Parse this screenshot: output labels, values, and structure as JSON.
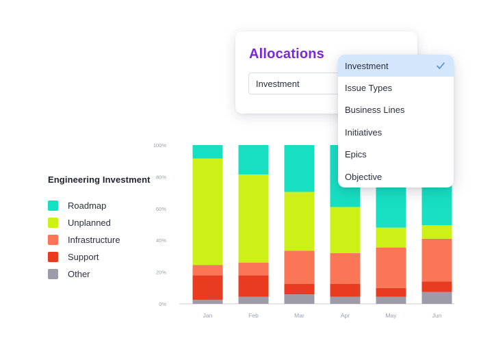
{
  "card": {
    "title": "Allocations",
    "select_value": "Investment"
  },
  "dropdown": {
    "options": [
      {
        "label": "Investment",
        "selected": true
      },
      {
        "label": "Issue Types",
        "selected": false
      },
      {
        "label": "Business Lines",
        "selected": false
      },
      {
        "label": "Initiatives",
        "selected": false
      },
      {
        "label": "Epics",
        "selected": false
      },
      {
        "label": "Objective",
        "selected": false
      }
    ],
    "selected_icon": "check-icon",
    "accent": "#d3e6fb"
  },
  "legend": {
    "title": "Engineering Investment",
    "items": [
      {
        "label": "Roadmap",
        "color": "#17e0c2"
      },
      {
        "label": "Unplanned",
        "color": "#cdf116"
      },
      {
        "label": "Infrastructure",
        "color": "#fb7656"
      },
      {
        "label": "Support",
        "color": "#e93b1f"
      },
      {
        "label": "Other",
        "color": "#9d9ba8"
      }
    ]
  },
  "chart_data": {
    "type": "bar",
    "stacked": true,
    "categories": [
      "Jan",
      "Feb",
      "Mar",
      "Apr",
      "May",
      "Jun"
    ],
    "y_ticks": [
      "0%",
      "20%",
      "40%",
      "60%",
      "80%",
      "100%"
    ],
    "ylim": [
      0,
      100
    ],
    "grid": false,
    "legend_position": "left",
    "series": [
      {
        "name": "Other",
        "color": "#9d9ba8",
        "values": [
          2.5,
          4.5,
          6,
          4.5,
          4.5,
          7.5
        ]
      },
      {
        "name": "Support",
        "color": "#e93b1f",
        "values": [
          15.5,
          13.5,
          6.5,
          8,
          5.5,
          6.5
        ]
      },
      {
        "name": "Infrastructure",
        "color": "#fb7656",
        "values": [
          6.5,
          8,
          21,
          19.5,
          25.5,
          27
        ]
      },
      {
        "name": "Unplanned",
        "color": "#cdf116",
        "values": [
          67,
          55.5,
          37,
          29,
          12.5,
          8.5
        ]
      },
      {
        "name": "Roadmap",
        "color": "#17e0c2",
        "values": [
          8.5,
          18.5,
          29.5,
          39,
          52,
          50.5
        ]
      }
    ]
  }
}
